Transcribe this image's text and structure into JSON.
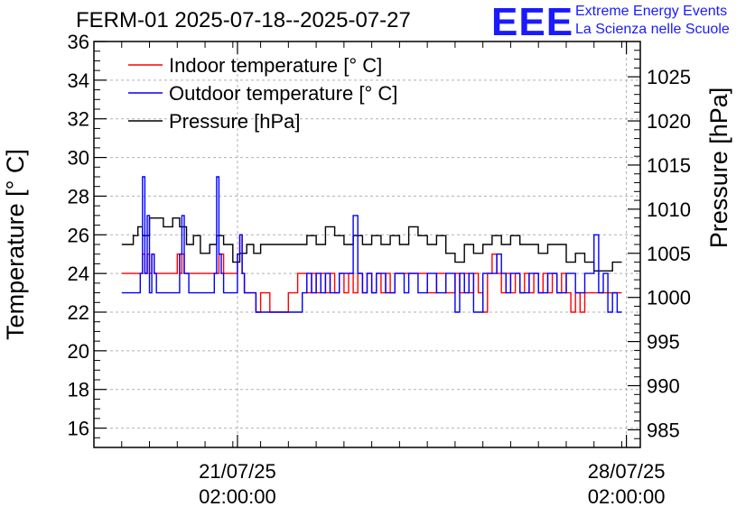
{
  "title": "FERM-01 2025-07-18--2025-07-27",
  "logo": {
    "mark": "EEE",
    "line1": "Extreme Energy Events",
    "line2": "La Scienza nelle Scuole",
    "color": "#1a1aff"
  },
  "chart_data": {
    "type": "line",
    "ylabel_left": "Temperature [° C]",
    "ylabel_right": "Pressure [hPa]",
    "ylim_left": [
      15,
      36
    ],
    "ylim_right": [
      983,
      1029
    ],
    "yticks_left": [
      16,
      18,
      20,
      22,
      24,
      26,
      28,
      30,
      32,
      34,
      36
    ],
    "yticks_right": [
      985,
      990,
      995,
      1000,
      1005,
      1010,
      1015,
      1020,
      1025
    ],
    "xlim": [
      "2025-07-18 12:00",
      "2025-07-28 08:00"
    ],
    "xticks": [
      {
        "value": "2025-07-21 02:00",
        "line1": "21/07/25",
        "line2": "02:00:00"
      },
      {
        "value": "2025-07-28 02:00",
        "line1": "28/07/25",
        "line2": "02:00:00"
      }
    ],
    "grid": true,
    "legend_position": "top-left",
    "series": [
      {
        "name": "Indoor temperature [° C]",
        "color": "#ff0000",
        "axis": "left",
        "x": [
          "2025-07-19 00:00",
          "2025-07-19 08:00",
          "2025-07-19 09:00",
          "2025-07-19 10:00",
          "2025-07-19 11:00",
          "2025-07-19 12:00",
          "2025-07-19 13:00",
          "2025-07-19 14:00",
          "2025-07-19 16:00",
          "2025-07-19 22:00",
          "2025-07-20 00:00",
          "2025-07-20 01:00",
          "2025-07-20 02:00",
          "2025-07-20 03:00",
          "2025-07-20 04:00",
          "2025-07-20 06:00",
          "2025-07-20 12:00",
          "2025-07-20 16:00",
          "2025-07-20 18:00",
          "2025-07-20 20:00",
          "2025-07-21 00:00",
          "2025-07-21 02:00",
          "2025-07-21 03:00",
          "2025-07-21 04:00",
          "2025-07-21 05:00",
          "2025-07-21 06:00",
          "2025-07-21 08:00",
          "2025-07-21 10:00",
          "2025-07-21 12:00",
          "2025-07-21 16:00",
          "2025-07-22 00:00",
          "2025-07-22 04:00",
          "2025-07-22 08:00",
          "2025-07-22 10:00",
          "2025-07-22 12:00",
          "2025-07-22 14:00",
          "2025-07-22 16:00",
          "2025-07-22 18:00",
          "2025-07-22 20:00",
          "2025-07-22 22:00",
          "2025-07-23 00:00",
          "2025-07-23 02:00",
          "2025-07-23 04:00",
          "2025-07-23 06:00",
          "2025-07-23 08:00",
          "2025-07-23 10:00",
          "2025-07-23 12:00",
          "2025-07-23 14:00",
          "2025-07-23 16:00",
          "2025-07-23 18:00",
          "2025-07-23 20:00",
          "2025-07-23 22:00",
          "2025-07-24 00:00",
          "2025-07-24 04:00",
          "2025-07-24 08:00",
          "2025-07-24 12:00",
          "2025-07-24 16:00",
          "2025-07-24 20:00",
          "2025-07-25 00:00",
          "2025-07-25 02:00",
          "2025-07-25 04:00",
          "2025-07-25 06:00",
          "2025-07-25 08:00",
          "2025-07-25 10:00",
          "2025-07-25 12:00",
          "2025-07-25 14:00",
          "2025-07-25 16:00",
          "2025-07-25 18:00",
          "2025-07-25 20:00",
          "2025-07-25 22:00",
          "2025-07-26 00:00",
          "2025-07-26 02:00",
          "2025-07-26 04:00",
          "2025-07-26 06:00",
          "2025-07-26 08:00",
          "2025-07-26 10:00",
          "2025-07-26 12:00",
          "2025-07-26 14:00",
          "2025-07-26 16:00",
          "2025-07-26 18:00",
          "2025-07-26 20:00",
          "2025-07-26 22:00",
          "2025-07-27 00:00",
          "2025-07-27 02:00",
          "2025-07-27 04:00",
          "2025-07-27 06:00",
          "2025-07-27 08:00",
          "2025-07-27 10:00",
          "2025-07-27 12:00",
          "2025-07-27 14:00",
          "2025-07-27 16:00",
          "2025-07-27 18:00",
          "2025-07-27 20:00",
          "2025-07-27 22:00",
          "2025-07-28 00:00"
        ],
        "y": [
          24,
          24,
          25,
          24,
          25,
          24,
          25,
          24,
          24,
          24,
          25,
          24,
          25,
          24,
          24,
          24,
          24,
          24,
          25,
          24,
          24,
          25,
          26,
          24,
          23,
          23,
          23,
          22,
          23,
          22,
          23,
          24,
          23,
          24,
          23,
          24,
          23,
          24,
          23,
          24,
          23,
          24,
          23,
          24,
          23,
          24,
          23,
          24,
          23,
          24,
          23,
          24,
          24,
          24,
          24,
          23,
          24,
          23,
          24,
          23,
          24,
          23,
          24,
          23,
          22,
          24,
          25,
          24,
          23,
          24,
          23,
          24,
          23,
          24,
          23,
          24,
          23,
          24,
          23,
          24,
          23,
          24,
          23,
          22,
          23,
          22,
          23,
          23,
          23,
          23,
          23,
          23,
          23,
          23,
          23
        ]
      },
      {
        "name": "Outdoor temperature [° C]",
        "color": "#0000ff",
        "axis": "left",
        "x": [
          "2025-07-19 00:00",
          "2025-07-19 06:00",
          "2025-07-19 08:00",
          "2025-07-19 09:00",
          "2025-07-19 10:00",
          "2025-07-19 11:00",
          "2025-07-19 12:00",
          "2025-07-19 13:00",
          "2025-07-19 14:00",
          "2025-07-19 15:00",
          "2025-07-19 16:00",
          "2025-07-19 22:00",
          "2025-07-20 01:00",
          "2025-07-20 02:00",
          "2025-07-20 03:00",
          "2025-07-20 05:00",
          "2025-07-20 06:00",
          "2025-07-20 12:00",
          "2025-07-20 16:00",
          "2025-07-20 17:00",
          "2025-07-20 18:00",
          "2025-07-20 19:00",
          "2025-07-20 20:00",
          "2025-07-20 21:00",
          "2025-07-21 00:00",
          "2025-07-21 02:00",
          "2025-07-21 03:00",
          "2025-07-21 04:00",
          "2025-07-21 05:00",
          "2025-07-21 10:00",
          "2025-07-21 14:00",
          "2025-07-22 00:00",
          "2025-07-22 06:00",
          "2025-07-22 08:00",
          "2025-07-22 10:00",
          "2025-07-22 12:00",
          "2025-07-22 14:00",
          "2025-07-22 16:00",
          "2025-07-22 18:00",
          "2025-07-22 22:00",
          "2025-07-23 00:00",
          "2025-07-23 04:00",
          "2025-07-23 06:00",
          "2025-07-23 08:00",
          "2025-07-23 10:00",
          "2025-07-23 12:00",
          "2025-07-23 14:00",
          "2025-07-23 18:00",
          "2025-07-23 22:00",
          "2025-07-24 02:00",
          "2025-07-24 04:00",
          "2025-07-24 08:00",
          "2025-07-24 12:00",
          "2025-07-24 16:00",
          "2025-07-24 20:00",
          "2025-07-25 00:00",
          "2025-07-25 02:00",
          "2025-07-25 04:00",
          "2025-07-25 06:00",
          "2025-07-25 08:00",
          "2025-07-25 12:00",
          "2025-07-25 16:00",
          "2025-07-25 18:00",
          "2025-07-25 20:00",
          "2025-07-25 22:00",
          "2025-07-26 00:00",
          "2025-07-26 04:00",
          "2025-07-26 08:00",
          "2025-07-26 12:00",
          "2025-07-26 16:00",
          "2025-07-26 20:00",
          "2025-07-27 00:00",
          "2025-07-27 04:00",
          "2025-07-27 08:00",
          "2025-07-27 12:00",
          "2025-07-27 14:00",
          "2025-07-27 16:00",
          "2025-07-27 18:00",
          "2025-07-27 20:00",
          "2025-07-27 22:00",
          "2025-07-28 00:00"
        ],
        "y": [
          23,
          23,
          24,
          29,
          24,
          27,
          23,
          25,
          24,
          23,
          23,
          23,
          25,
          27,
          24,
          23,
          23,
          23,
          24,
          29,
          25,
          24,
          23,
          23,
          23,
          25,
          26,
          24,
          23,
          22,
          22,
          22,
          23,
          24,
          23,
          24,
          23,
          24,
          23,
          24,
          24,
          27,
          24,
          23,
          24,
          23,
          24,
          23,
          24,
          23,
          24,
          23,
          24,
          23,
          24,
          22,
          24,
          23,
          24,
          22,
          24,
          24,
          25,
          24,
          23,
          24,
          23,
          24,
          23,
          24,
          23,
          24,
          23,
          24,
          26,
          23,
          24,
          22,
          23,
          22,
          22
        ]
      },
      {
        "name": "Pressure [hPa]",
        "color": "#000000",
        "axis": "right",
        "x": [
          "2025-07-19 00:00",
          "2025-07-19 05:00",
          "2025-07-19 07:00",
          "2025-07-19 09:00",
          "2025-07-19 12:00",
          "2025-07-19 18:00",
          "2025-07-19 22:00",
          "2025-07-20 01:00",
          "2025-07-20 04:00",
          "2025-07-20 07:00",
          "2025-07-20 10:00",
          "2025-07-20 14:00",
          "2025-07-20 17:00",
          "2025-07-20 20:00",
          "2025-07-21 00:00",
          "2025-07-21 03:00",
          "2025-07-21 06:00",
          "2025-07-21 09:00",
          "2025-07-21 12:00",
          "2025-07-21 16:00",
          "2025-07-21 20:00",
          "2025-07-22 00:00",
          "2025-07-22 04:00",
          "2025-07-22 08:00",
          "2025-07-22 12:00",
          "2025-07-22 16:00",
          "2025-07-22 20:00",
          "2025-07-23 00:00",
          "2025-07-23 04:00",
          "2025-07-23 08:00",
          "2025-07-23 12:00",
          "2025-07-23 16:00",
          "2025-07-23 20:00",
          "2025-07-24 00:00",
          "2025-07-24 04:00",
          "2025-07-24 08:00",
          "2025-07-24 12:00",
          "2025-07-24 16:00",
          "2025-07-24 20:00",
          "2025-07-25 00:00",
          "2025-07-25 04:00",
          "2025-07-25 08:00",
          "2025-07-25 12:00",
          "2025-07-25 16:00",
          "2025-07-25 20:00",
          "2025-07-26 00:00",
          "2025-07-26 04:00",
          "2025-07-26 08:00",
          "2025-07-26 12:00",
          "2025-07-26 16:00",
          "2025-07-26 20:00",
          "2025-07-27 00:00",
          "2025-07-27 04:00",
          "2025-07-27 08:00",
          "2025-07-27 12:00",
          "2025-07-27 16:00",
          "2025-07-27 20:00",
          "2025-07-28 00:00"
        ],
        "y": [
          1006,
          1007,
          1008,
          1007,
          1009,
          1008,
          1009,
          1008,
          1006,
          1007,
          1005,
          1006,
          1007,
          1006,
          1004,
          1005,
          1006,
          1005,
          1006,
          1006,
          1006,
          1006,
          1006,
          1007,
          1006,
          1008,
          1007,
          1006,
          1007,
          1006,
          1007,
          1006,
          1007,
          1006,
          1008,
          1007,
          1006,
          1007,
          1005,
          1004,
          1006,
          1005,
          1006,
          1007,
          1006,
          1007,
          1006,
          1006,
          1005,
          1006,
          1006,
          1004,
          1005,
          1004,
          1003,
          1003,
          1004,
          1004
        ]
      }
    ]
  }
}
